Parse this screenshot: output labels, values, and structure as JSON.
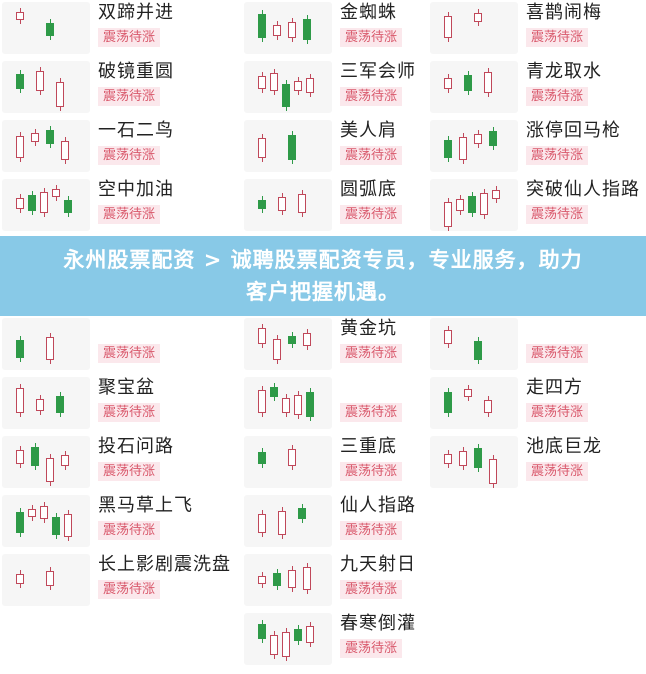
{
  "columns": [
    {
      "items": [
        {
          "title": "双蹄并进",
          "tag": "震荡待涨"
        },
        {
          "title": "破镜重圆",
          "tag": "震荡待涨"
        },
        {
          "title": "一石二鸟",
          "tag": "震荡待涨"
        },
        {
          "title": "空中加油",
          "tag": "震荡待涨"
        },
        {
          "title": "",
          "tag": "震荡待涨"
        },
        {
          "title": "聚宝盆",
          "tag": "震荡待涨"
        },
        {
          "title": "投石问路",
          "tag": "震荡待涨"
        },
        {
          "title": "黑马草上飞",
          "tag": "震荡待涨"
        },
        {
          "title": "长上影剧震洗盘",
          "tag": "震荡待涨"
        }
      ]
    },
    {
      "items": [
        {
          "title": "金蜘蛛",
          "tag": "震荡待涨"
        },
        {
          "title": "三军会师",
          "tag": "震荡待涨"
        },
        {
          "title": "美人肩",
          "tag": "震荡待涨"
        },
        {
          "title": "圆弧底",
          "tag": "震荡待涨"
        },
        {
          "title": "黄金坑",
          "tag": "震荡待涨"
        },
        {
          "title": "",
          "tag": "震荡待涨"
        },
        {
          "title": "三重底",
          "tag": "震荡待涨"
        },
        {
          "title": "仙人指路",
          "tag": "震荡待涨"
        },
        {
          "title": "九天射日",
          "tag": "震荡待涨"
        },
        {
          "title": "春寒倒灌",
          "tag": "震荡待涨"
        }
      ]
    },
    {
      "items": [
        {
          "title": "喜鹊闹梅",
          "tag": "震荡待涨"
        },
        {
          "title": "青龙取水",
          "tag": "震荡待涨"
        },
        {
          "title": "涨停回马枪",
          "tag": "震荡待涨"
        },
        {
          "title": "突破仙人指路",
          "tag": "震荡待涨"
        },
        {
          "title": "",
          "tag": "震荡待涨"
        },
        {
          "title": "走四方",
          "tag": "震荡待涨"
        },
        {
          "title": "池底巨龙",
          "tag": "震荡待涨"
        }
      ]
    }
  ],
  "banner": {
    "line1": "永州股票配资 > 诚聘股票配资专员，专业服务，助力",
    "line2": "客户把握机遇。"
  }
}
